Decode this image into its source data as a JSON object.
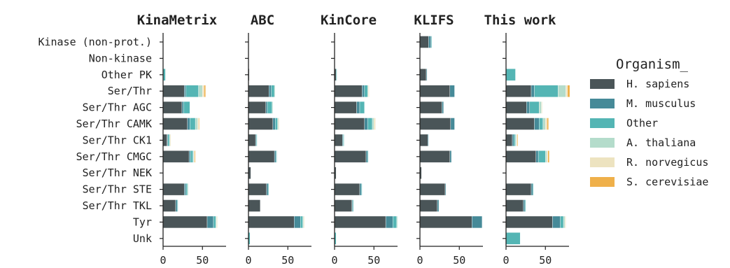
{
  "chart_data": {
    "type": "bar",
    "orientation": "horizontal",
    "stacked": true,
    "categories": [
      "Kinase (non-prot.)",
      "Non-kinase",
      "Other PK",
      "Ser/Thr",
      "Ser/Thr AGC",
      "Ser/Thr CAMK",
      "Ser/Thr CK1",
      "Ser/Thr CMGC",
      "Ser/Thr NEK",
      "Ser/Thr STE",
      "Ser/Thr TKL",
      "Tyr",
      "Unk"
    ],
    "xlim": [
      0,
      80
    ],
    "xticks": [
      "0",
      "50"
    ],
    "xtick_values": [
      0,
      50
    ],
    "legend": {
      "title": "Organism_",
      "placement": "right",
      "entries": [
        {
          "name": "H. sapiens",
          "color": "#4a5558"
        },
        {
          "name": "M. musculus",
          "color": "#468a98"
        },
        {
          "name": "Other",
          "color": "#54b5b4"
        },
        {
          "name": "A. thaliana",
          "color": "#b4dccb"
        },
        {
          "name": "R. norvegicus",
          "color": "#ede3c0"
        },
        {
          "name": "S. cerevisiae",
          "color": "#efb04a"
        }
      ]
    },
    "panels": [
      {
        "title": "KinaMetrix",
        "series": [
          {
            "name": "H. sapiens",
            "values": [
              0,
              0,
              0,
              27,
              24,
              31,
              5,
              33,
              0,
              27,
              16,
              56,
              0
            ]
          },
          {
            "name": "M. musculus",
            "values": [
              0,
              0,
              0,
              2,
              2,
              3,
              1,
              2,
              0,
              2,
              2,
              8,
              0
            ]
          },
          {
            "name": "Other",
            "values": [
              0,
              0,
              3,
              16,
              8,
              7,
              2,
              3,
              0,
              2,
              1,
              3,
              0
            ]
          },
          {
            "name": "A. thaliana",
            "values": [
              0,
              0,
              0,
              5,
              0,
              3,
              1,
              1,
              0,
              1,
              0,
              1,
              0
            ]
          },
          {
            "name": "R. norvegicus",
            "values": [
              0,
              0,
              0,
              2,
              0,
              1,
              1,
              1,
              0,
              0,
              0,
              1,
              0
            ]
          },
          {
            "name": "S. cerevisiae",
            "values": [
              0,
              0,
              0,
              2,
              0,
              1,
              0,
              1,
              0,
              0,
              0,
              0,
              0
            ]
          }
        ]
      },
      {
        "title": "ABC",
        "series": [
          {
            "name": "H. sapiens",
            "values": [
              0,
              0,
              1,
              26,
              22,
              31,
              9,
              33,
              3,
              23,
              15,
              58,
              0
            ]
          },
          {
            "name": "M. musculus",
            "values": [
              0,
              0,
              0,
              3,
              2,
              3,
              1,
              2,
              0,
              2,
              0,
              8,
              0
            ]
          },
          {
            "name": "Other",
            "values": [
              0,
              0,
              0,
              4,
              6,
              3,
              1,
              1,
              0,
              1,
              0,
              3,
              2
            ]
          },
          {
            "name": "A. thaliana",
            "values": [
              0,
              0,
              0,
              1,
              1,
              1,
              0,
              0,
              0,
              0,
              0,
              1,
              0
            ]
          },
          {
            "name": "R. norvegicus",
            "values": [
              0,
              0,
              0,
              0,
              0,
              1,
              0,
              0,
              0,
              0,
              0,
              1,
              0
            ]
          },
          {
            "name": "S. cerevisiae",
            "values": [
              0,
              0,
              0,
              0,
              0,
              0,
              0,
              0,
              0,
              0,
              0,
              0,
              0
            ]
          }
        ]
      },
      {
        "title": "KinCore",
        "series": [
          {
            "name": "H. sapiens",
            "values": [
              0,
              0,
              2,
              35,
              28,
              38,
              10,
              40,
              2,
              32,
              22,
              65,
              0
            ]
          },
          {
            "name": "M. musculus",
            "values": [
              0,
              0,
              0,
              3,
              4,
              4,
              1,
              2,
              0,
              2,
              1,
              9,
              0
            ]
          },
          {
            "name": "Other",
            "values": [
              0,
              0,
              1,
              4,
              6,
              6,
              1,
              1,
              0,
              1,
              1,
              5,
              2
            ]
          },
          {
            "name": "A. thaliana",
            "values": [
              0,
              0,
              0,
              1,
              0,
              2,
              0,
              0,
              0,
              0,
              0,
              1,
              0
            ]
          },
          {
            "name": "R. norvegicus",
            "values": [
              0,
              0,
              0,
              1,
              0,
              2,
              0,
              0,
              0,
              0,
              0,
              0,
              0
            ]
          },
          {
            "name": "S. cerevisiae",
            "values": [
              0,
              0,
              0,
              0,
              0,
              0,
              0,
              0,
              0,
              0,
              0,
              0,
              0
            ]
          }
        ]
      },
      {
        "title": "KLIFS",
        "series": [
          {
            "name": "H. sapiens",
            "values": [
              11,
              0,
              8,
              38,
              28,
              39,
              10,
              38,
              2,
              32,
              22,
              66,
              0
            ]
          },
          {
            "name": "M. musculus",
            "values": [
              3,
              0,
              1,
              6,
              2,
              5,
              1,
              2,
              0,
              1,
              2,
              13,
              0
            ]
          },
          {
            "name": "Other",
            "values": [
              1,
              0,
              0,
              0,
              0,
              0,
              0,
              0,
              0,
              0,
              0,
              0,
              0
            ]
          },
          {
            "name": "A. thaliana",
            "values": [
              0,
              0,
              0,
              0,
              0,
              0,
              0,
              0,
              0,
              0,
              0,
              0,
              0
            ]
          },
          {
            "name": "R. norvegicus",
            "values": [
              0,
              0,
              0,
              0,
              0,
              0,
              0,
              0,
              0,
              0,
              0,
              0,
              0
            ]
          },
          {
            "name": "S. cerevisiae",
            "values": [
              0,
              0,
              0,
              0,
              0,
              0,
              0,
              0,
              0,
              0,
              0,
              0,
              0
            ]
          }
        ]
      },
      {
        "title": "This work",
        "series": [
          {
            "name": "H. sapiens",
            "values": [
              0,
              0,
              0,
              32,
              26,
              36,
              8,
              38,
              0,
              32,
              22,
              59,
              0
            ]
          },
          {
            "name": "M. musculus",
            "values": [
              0,
              0,
              0,
              4,
              4,
              6,
              2,
              3,
              0,
              2,
              2,
              10,
              0
            ]
          },
          {
            "name": "Other",
            "values": [
              0,
              0,
              12,
              30,
              12,
              5,
              2,
              9,
              0,
              1,
              1,
              4,
              18
            ]
          },
          {
            "name": "A. thaliana",
            "values": [
              0,
              0,
              0,
              10,
              3,
              3,
              1,
              2,
              0,
              0,
              0,
              2,
              0
            ]
          },
          {
            "name": "R. norvegicus",
            "values": [
              0,
              0,
              0,
              2,
              1,
              2,
              1,
              1,
              0,
              0,
              0,
              1,
              0
            ]
          },
          {
            "name": "S. cerevisiae",
            "values": [
              0,
              0,
              0,
              3,
              0,
              2,
              1,
              2,
              0,
              0,
              0,
              0,
              0
            ]
          }
        ]
      }
    ]
  }
}
